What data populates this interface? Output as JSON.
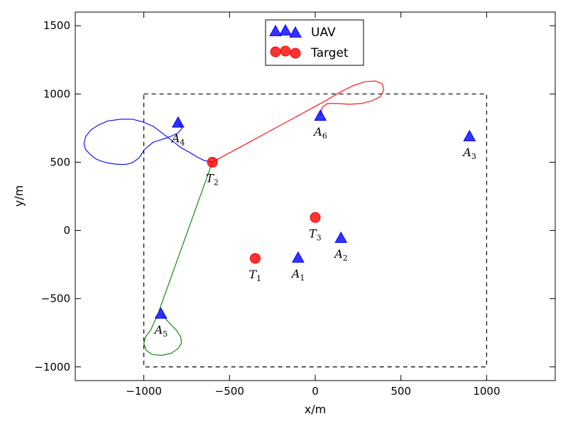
{
  "chart_data": {
    "type": "scatter",
    "xlabel": "x/m",
    "ylabel": "y/m",
    "xlim": [
      -1400,
      1400
    ],
    "ylim": [
      -1100,
      1600
    ],
    "xticks": [
      -1000,
      -500,
      0,
      500,
      1000
    ],
    "yticks": [
      -1000,
      -500,
      0,
      500,
      1000,
      1500
    ],
    "xtick_labels": [
      "−1000",
      "−500",
      "0",
      "500",
      "1000"
    ],
    "ytick_labels": [
      "−1000",
      "−500",
      "0",
      "500",
      "1000",
      "1500"
    ],
    "grid": false,
    "legend_position": "top-center",
    "region": {
      "x": [
        -1000,
        1000
      ],
      "y": [
        -1000,
        1000
      ],
      "style": "dashed",
      "color": "#000000"
    },
    "series": [
      {
        "name": "UAV",
        "marker": "triangle",
        "color": "#0000ff",
        "points": [
          {
            "x": -100,
            "y": -200,
            "label": "A",
            "sub": "1"
          },
          {
            "x": 150,
            "y": -55,
            "label": "A",
            "sub": "2"
          },
          {
            "x": 900,
            "y": 690,
            "label": "A",
            "sub": "3"
          },
          {
            "x": -800,
            "y": 790,
            "label": "A",
            "sub": "4"
          },
          {
            "x": -900,
            "y": -610,
            "label": "A",
            "sub": "5"
          },
          {
            "x": 30,
            "y": 840,
            "label": "A",
            "sub": "6"
          }
        ]
      },
      {
        "name": "Target",
        "marker": "circle",
        "color": "#ff0000",
        "points": [
          {
            "x": -350,
            "y": -205,
            "label": "T",
            "sub": "1"
          },
          {
            "x": -600,
            "y": 500,
            "label": "T",
            "sub": "2"
          },
          {
            "x": 0,
            "y": 95,
            "label": "T",
            "sub": "3"
          }
        ]
      }
    ],
    "paths": [
      {
        "color": "#0000ff",
        "points": [
          [
            -800,
            790
          ],
          [
            -777,
            748
          ],
          [
            -800,
            715
          ],
          [
            -832,
            695
          ],
          [
            -873,
            675
          ],
          [
            -914,
            659
          ],
          [
            -946,
            646
          ],
          [
            -974,
            616
          ],
          [
            -998,
            591
          ],
          [
            -1008,
            571
          ],
          [
            -1019,
            546
          ],
          [
            -1034,
            525
          ],
          [
            -1066,
            497
          ],
          [
            -1100,
            485
          ],
          [
            -1132,
            483
          ],
          [
            -1171,
            487
          ],
          [
            -1211,
            495
          ],
          [
            -1251,
            508
          ],
          [
            -1283,
            527
          ],
          [
            -1315,
            560
          ],
          [
            -1340,
            593
          ],
          [
            -1349,
            636
          ],
          [
            -1339,
            689
          ],
          [
            -1310,
            735
          ],
          [
            -1268,
            771
          ],
          [
            -1211,
            802
          ],
          [
            -1137,
            815
          ],
          [
            -1067,
            815
          ],
          [
            -1006,
            795
          ],
          [
            -945,
            763
          ],
          [
            -907,
            727
          ],
          [
            -865,
            686
          ],
          [
            -820,
            643
          ],
          [
            -784,
            607
          ],
          [
            -738,
            575
          ],
          [
            -692,
            541
          ],
          [
            -650,
            513
          ],
          [
            -600,
            500
          ]
        ]
      },
      {
        "color": "#ff0000",
        "points": [
          [
            -600,
            500
          ],
          [
            -490,
            575
          ],
          [
            -380,
            650
          ],
          [
            -270,
            725
          ],
          [
            -160,
            800
          ],
          [
            -50,
            875
          ],
          [
            60,
            950
          ],
          [
            140,
            1010
          ],
          [
            220,
            1060
          ],
          [
            290,
            1090
          ],
          [
            350,
            1095
          ],
          [
            390,
            1075
          ],
          [
            400,
            1030
          ],
          [
            380,
            980
          ],
          [
            330,
            950
          ],
          [
            270,
            930
          ],
          [
            200,
            925
          ],
          [
            130,
            930
          ],
          [
            70,
            930
          ],
          [
            40,
            900
          ],
          [
            30,
            840
          ]
        ]
      },
      {
        "color": "#008000",
        "points": [
          [
            -600,
            500
          ],
          [
            -640,
            360
          ],
          [
            -680,
            220
          ],
          [
            -720,
            80
          ],
          [
            -760,
            -60
          ],
          [
            -800,
            -200
          ],
          [
            -840,
            -340
          ],
          [
            -880,
            -480
          ],
          [
            -920,
            -620
          ],
          [
            -960,
            -730
          ],
          [
            -990,
            -780
          ],
          [
            -1000,
            -830
          ],
          [
            -985,
            -880
          ],
          [
            -950,
            -910
          ],
          [
            -895,
            -915
          ],
          [
            -840,
            -900
          ],
          [
            -800,
            -865
          ],
          [
            -780,
            -825
          ],
          [
            -785,
            -780
          ],
          [
            -810,
            -730
          ],
          [
            -850,
            -680
          ],
          [
            -900,
            -610
          ]
        ]
      }
    ]
  }
}
